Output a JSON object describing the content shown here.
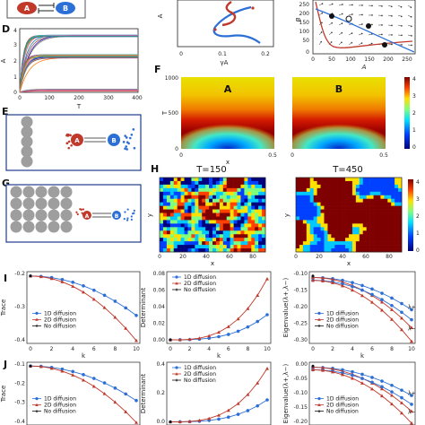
{
  "labels": {
    "D": "D",
    "E": "E",
    "F": "F",
    "G": "G",
    "H": "H",
    "I": "I",
    "J": "J"
  },
  "colors": {
    "red": "#c0392b",
    "blue": "#2c6fd6",
    "dark": "#222222",
    "cell": "#9e9e9e",
    "panel_border": "#1f3d8a"
  },
  "motif": {
    "node_a": "A",
    "node_b": "B"
  },
  "row1": {
    "phase_y_label": "A",
    "phase_x_label": "γA",
    "phase_x_ticks": [
      "0",
      "0.1",
      "0.2"
    ],
    "nullcline_y_label": "B",
    "nullcline_x_label": "A",
    "nullcline_x_ticks": [
      "0",
      "50",
      "100",
      "150",
      "200",
      "250"
    ],
    "nullcline_y_ticks": [
      "0",
      "50",
      "100",
      "150",
      "200",
      "250"
    ]
  },
  "panel_D": {
    "ylabel": "A",
    "xlabel": "T",
    "x_ticks": [
      "0",
      "100",
      "200",
      "300",
      "400"
    ],
    "y_ticks": [
      "0",
      "1",
      "2",
      "3",
      "4"
    ]
  },
  "panel_F": {
    "ylabel": "T",
    "xlabel": "x",
    "left_label": "A",
    "right_label": "B",
    "y_ticks": [
      "0",
      "500",
      "1000"
    ],
    "x_ticks_left": [
      "0",
      "0.5"
    ],
    "x_ticks_right": [
      "0",
      "0.5"
    ],
    "colorbar_ticks": [
      "0",
      "1",
      "2",
      "3",
      "4"
    ]
  },
  "panel_H": {
    "title_left": "T=150",
    "title_right": "T=450",
    "ylabel": "y",
    "xlabel": "x",
    "x_ticks": [
      "0",
      "20",
      "40",
      "60",
      "80"
    ],
    "y_ticks": [
      "0",
      "20",
      "40",
      "60",
      "80"
    ],
    "colorbar_ticks": [
      "0",
      "1",
      "2",
      "3",
      "4"
    ]
  },
  "panel_I": {
    "trace_label": "Trace",
    "det_label": "Determinant",
    "eig_label": "Eigenvalue(λ+,λ−)",
    "xlabel": "k",
    "legend": [
      "1D diffusion",
      "2D diffusion",
      "No diffusion"
    ],
    "trace_ticks": [
      "-0.2",
      "-0.3",
      "-0.4"
    ],
    "det_ticks": [
      "0.08",
      "0.06",
      "0.04",
      "0.02",
      "0.00"
    ],
    "eig_ticks": [
      "-0.10",
      "-0.15",
      "-0.20",
      "-0.25",
      "-0.30"
    ],
    "x_ticks": [
      "0",
      "2",
      "4",
      "6",
      "8",
      "10"
    ],
    "eig_tags": [
      "λ+",
      "λ−"
    ]
  },
  "panel_J": {
    "trace_label": "Trace",
    "det_label": "Determinant",
    "eig_label": "Eigenvalue(λ+,λ−)",
    "legend": [
      "1D diffusion",
      "2D diffusion",
      "No diffusion"
    ],
    "trace_ticks": [
      "-0.1",
      "-0.2",
      "-0.3",
      "-0.4"
    ],
    "det_ticks": [
      "0.4",
      "0.2",
      "0.0"
    ],
    "eig_ticks": [
      "0.00",
      "-0.05",
      "-0.10",
      "-0.15",
      "-0.20"
    ]
  }
}
